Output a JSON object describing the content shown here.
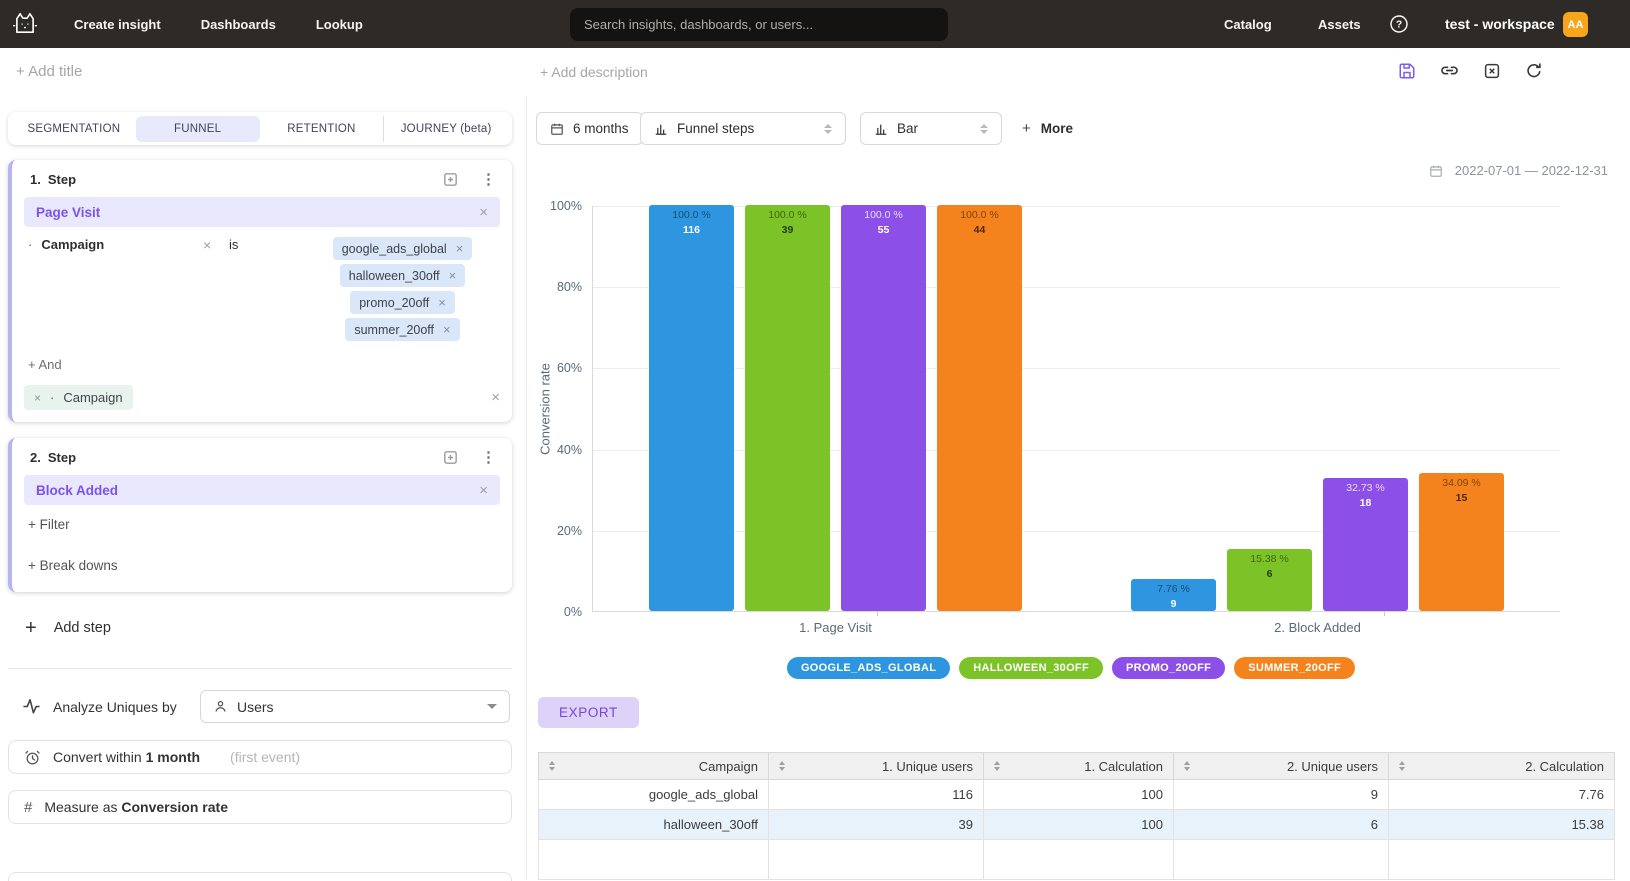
{
  "navbar": {
    "items": [
      "Create insight",
      "Dashboards",
      "Lookup"
    ],
    "search_placeholder": "Search insights, dashboards, or users...",
    "right_items": [
      "Catalog",
      "Assets"
    ],
    "workspace": "test - workspace",
    "avatar": "AA",
    "avatar_color": "#f7a51b"
  },
  "titlebar": {
    "add_title": "+ Add title",
    "add_description": "+ Add description"
  },
  "left_panel": {
    "tabs": [
      "SEGMENTATION",
      "FUNNEL",
      "RETENTION",
      "JOURNEY (beta)"
    ],
    "active_tab_index": 1,
    "steps": [
      {
        "num": "1.",
        "label": "Step",
        "event": "Page Visit",
        "filter_property": "Campaign",
        "filter_operator": "is",
        "filter_values": [
          "google_ads_global",
          "halloween_30off",
          "promo_20off",
          "summer_20off"
        ],
        "and_label": "+ And",
        "breakdown_property": "Campaign"
      },
      {
        "num": "2.",
        "label": "Step",
        "event": "Block Added",
        "add_filter_label": "+ Filter",
        "add_breakdowns_label": "+ Break downs"
      }
    ],
    "add_step_label": "Add step",
    "analyze": {
      "label": "Analyze Uniques by",
      "value": "Users"
    },
    "convert": {
      "prefix": "Convert within",
      "value": "1 month",
      "suffix": "(first event)"
    },
    "measure": {
      "prefix": "Measure as",
      "value": "Conversion rate"
    }
  },
  "chart_controls": {
    "range": "6 months",
    "view": "Funnel steps",
    "chart_type": "Bar",
    "more": "More",
    "date_range": "2022-07-01 — 2022-12-31"
  },
  "chart_data": {
    "type": "bar",
    "categories": [
      "1. Page Visit",
      "2. Block Added"
    ],
    "ylabel": "Conversion rate",
    "ylim": [
      0,
      100
    ],
    "yticks": [
      "100%",
      "80%",
      "60%",
      "40%",
      "20%",
      "0%"
    ],
    "grid": true,
    "legend_position": "bottom",
    "series": [
      {
        "name": "google_ads_global",
        "legend": "GOOGLE_ADS_GLOBAL",
        "color": "#2e96e0",
        "values": [
          100.0,
          7.76
        ],
        "value_labels": [
          "100.0 %",
          "7.76 %"
        ],
        "counts": [
          116,
          9
        ],
        "pct_color": "rgba(0,0,0,0.5)",
        "cnt_color": "#ffffff"
      },
      {
        "name": "halloween_30off",
        "legend": "HALLOWEEN_30OFF",
        "color": "#7cc327",
        "values": [
          100.0,
          15.38
        ],
        "value_labels": [
          "100.0 %",
          "15.38 %"
        ],
        "counts": [
          39,
          6
        ],
        "pct_color": "rgba(0,0,0,0.5)",
        "cnt_color": "rgba(0,0,0,0.7)"
      },
      {
        "name": "promo_20off",
        "legend": "PROMO_20OFF",
        "color": "#8c50e8",
        "values": [
          100.0,
          32.73
        ],
        "value_labels": [
          "100.0 %",
          "32.73 %"
        ],
        "counts": [
          55,
          18
        ],
        "pct_color": "rgba(255,255,255,0.8)",
        "cnt_color": "#ffffff"
      },
      {
        "name": "summer_20off",
        "legend": "SUMMER_20OFF",
        "color": "#f5831d",
        "values": [
          100.0,
          34.09
        ],
        "value_labels": [
          "100.0 %",
          "34.09 %"
        ],
        "counts": [
          44,
          15
        ],
        "pct_color": "rgba(0,0,0,0.5)",
        "cnt_color": "rgba(0,0,0,0.7)"
      }
    ]
  },
  "export_label": "EXPORT",
  "table": {
    "columns": [
      "Campaign",
      "1. Unique users",
      "1. Calculation",
      "2. Unique users",
      "2. Calculation"
    ],
    "rows": [
      [
        "google_ads_global",
        "116",
        "100",
        "9",
        "7.76"
      ],
      [
        "halloween_30off",
        "39",
        "100",
        "6",
        "15.38"
      ]
    ]
  }
}
